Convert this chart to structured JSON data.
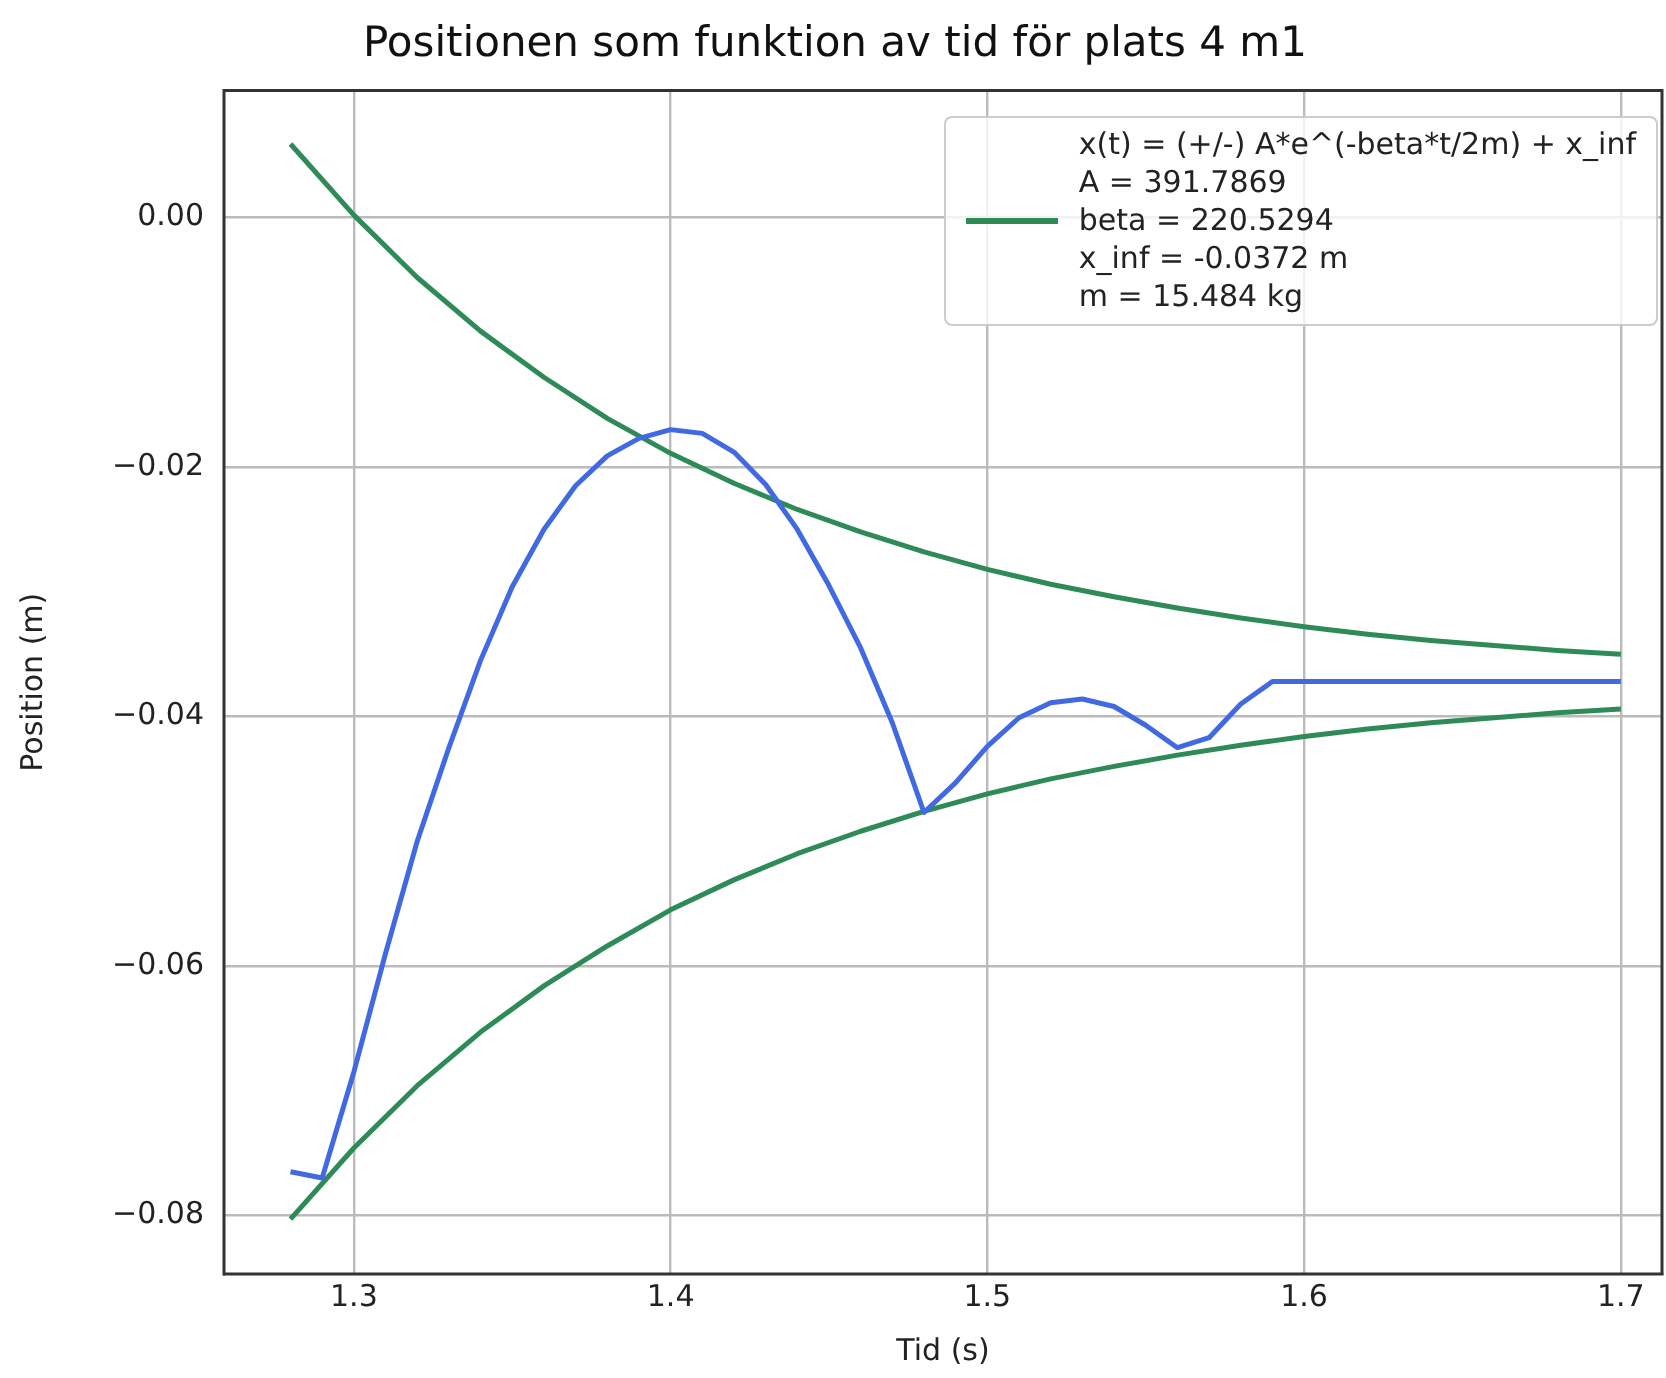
{
  "chart_data": {
    "type": "line",
    "title": "Positionen som funktion av tid för plats 4 m1",
    "xlabel": "Tid (s)",
    "ylabel": "Position (m)",
    "xlim": [
      1.259,
      1.713
    ],
    "ylim": [
      -0.0847,
      0.0102
    ],
    "xticks": [
      1.3,
      1.4,
      1.5,
      1.6,
      1.7
    ],
    "yticks": [
      {
        "value": 0,
        "label": "0.00"
      },
      {
        "value": -0.02,
        "label": "−0.02"
      },
      {
        "value": -0.04,
        "label": "−0.04"
      },
      {
        "value": -0.06,
        "label": "−0.06"
      },
      {
        "value": -0.08,
        "label": "−0.08"
      }
    ],
    "grid": true,
    "legend": "top right",
    "marker": "none",
    "line_style": "solid",
    "series": [
      {
        "color": "#4169e1",
        "x": [
          1.28,
          1.29,
          1.3,
          1.31,
          1.32,
          1.33,
          1.34,
          1.35,
          1.36,
          1.37,
          1.38,
          1.39,
          1.4,
          1.41,
          1.42,
          1.43,
          1.44,
          1.45,
          1.46,
          1.47,
          1.48,
          1.49,
          1.5,
          1.51,
          1.52,
          1.53,
          1.54,
          1.55,
          1.56,
          1.57,
          1.58,
          1.59,
          1.6,
          1.61,
          1.62,
          1.63,
          1.64,
          1.65,
          1.66,
          1.67,
          1.68,
          1.69,
          1.7
        ],
        "values": [
          -0.0765,
          -0.077,
          -0.0685,
          -0.059,
          -0.05,
          -0.0425,
          -0.0355,
          -0.0296,
          -0.025,
          -0.0215,
          -0.0191,
          -0.0177,
          -0.017,
          -0.0173,
          -0.0188,
          -0.0214,
          -0.025,
          -0.0295,
          -0.0345,
          -0.0405,
          -0.0477,
          -0.0453,
          -0.0424,
          -0.0401,
          -0.0389,
          -0.0386,
          -0.0392,
          -0.0407,
          -0.0425,
          -0.0417,
          -0.039,
          -0.0372,
          -0.0372,
          -0.0372,
          -0.0372,
          -0.0372,
          -0.0372,
          -0.0372,
          -0.0372,
          -0.0372,
          -0.0372,
          -0.0372,
          -0.0372
        ]
      },
      {
        "name": "x(t) = (+/-) A*e^(-beta*t/2m) + x_inf\nA = 391.7869\nbeta = 220.5294\nx_inf = -0.0372 m\nm = 15.484 kg",
        "color": "#2e8b57",
        "x": [
          1.28,
          1.3,
          1.32,
          1.34,
          1.36,
          1.38,
          1.4,
          1.42,
          1.44,
          1.46,
          1.48,
          1.5,
          1.52,
          1.54,
          1.56,
          1.58,
          1.6,
          1.62,
          1.64,
          1.66,
          1.68,
          1.7
        ],
        "values": [
          0.0059,
          0.0002,
          -0.0048,
          -0.0091,
          -0.0128,
          -0.0161,
          -0.0189,
          -0.0213,
          -0.0234,
          -0.0252,
          -0.0268,
          -0.0282,
          -0.0294,
          -0.0304,
          -0.0313,
          -0.0321,
          -0.0328,
          -0.0334,
          -0.0339,
          -0.0343,
          -0.0347,
          -0.035
        ]
      },
      {
        "color": "#2e8b57",
        "x": [
          1.28,
          1.3,
          1.32,
          1.34,
          1.36,
          1.38,
          1.4,
          1.42,
          1.44,
          1.46,
          1.48,
          1.5,
          1.52,
          1.54,
          1.56,
          1.58,
          1.6,
          1.62,
          1.64,
          1.66,
          1.68,
          1.7
        ],
        "values": [
          -0.0803,
          -0.0746,
          -0.0696,
          -0.0653,
          -0.0616,
          -0.0584,
          -0.0555,
          -0.0531,
          -0.051,
          -0.0492,
          -0.0476,
          -0.0462,
          -0.045,
          -0.044,
          -0.0431,
          -0.0423,
          -0.0416,
          -0.041,
          -0.0405,
          -0.0401,
          -0.0397,
          -0.0394
        ]
      }
    ]
  }
}
